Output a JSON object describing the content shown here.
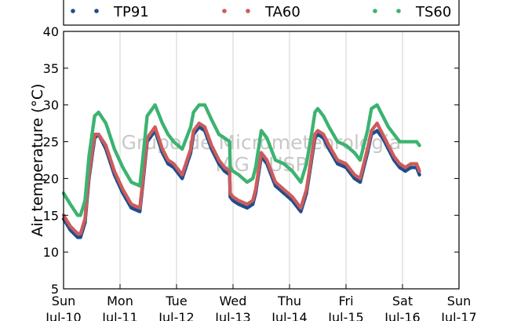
{
  "chart_data": {
    "type": "scatter",
    "title": "",
    "xlabel": "",
    "ylabel": "Air temperature (°C)",
    "ylim": [
      5,
      40
    ],
    "yticks": [
      "5",
      "10",
      "15",
      "20",
      "25",
      "30",
      "35",
      "40"
    ],
    "xlim": [
      0,
      7
    ],
    "xtick_days": [
      "Sun",
      "Mon",
      "Tue",
      "Wed",
      "Thu",
      "Fri",
      "Sat",
      "Sun"
    ],
    "xtick_dates": [
      "Jul-10",
      "Jul-11",
      "Jul-12",
      "Jul-13",
      "Jul-14",
      "Jul-15",
      "Jul-16",
      "Jul-17"
    ],
    "grid": "vertical",
    "legend_position": "top",
    "watermark": [
      "Grupo de Micrometeorologia",
      "IAG / USP"
    ],
    "series": [
      {
        "name": "TP91",
        "color": "#1f4e8c",
        "x": [
          0.0,
          0.12,
          0.25,
          0.3,
          0.38,
          0.45,
          0.55,
          0.62,
          0.75,
          0.9,
          1.05,
          1.2,
          1.35,
          1.4,
          1.48,
          1.62,
          1.75,
          1.85,
          1.95,
          2.1,
          2.25,
          2.3,
          2.4,
          2.5,
          2.62,
          2.75,
          2.85,
          2.94,
          2.95,
          3.0,
          3.1,
          3.25,
          3.35,
          3.4,
          3.5,
          3.6,
          3.75,
          3.9,
          4.05,
          4.2,
          4.3,
          4.4,
          4.45,
          4.5,
          4.6,
          4.7,
          4.85,
          5.0,
          5.15,
          5.25,
          5.38,
          5.45,
          5.55,
          5.65,
          5.75,
          5.85,
          5.95,
          6.05,
          6.15,
          6.25,
          6.3
        ],
        "values": [
          14.5,
          13.0,
          12.0,
          12.0,
          14.0,
          20.0,
          25.5,
          26.0,
          24.0,
          20.5,
          18.0,
          16.0,
          15.5,
          19.0,
          25.0,
          26.5,
          23.5,
          22.0,
          21.5,
          20.0,
          23.5,
          26.0,
          27.0,
          26.5,
          24.0,
          22.0,
          21.0,
          20.5,
          17.5,
          17.0,
          16.5,
          16.0,
          16.5,
          18.0,
          23.0,
          22.0,
          19.0,
          18.0,
          17.0,
          15.5,
          18.0,
          23.0,
          25.5,
          26.0,
          25.5,
          24.0,
          22.0,
          21.5,
          20.0,
          19.5,
          23.5,
          26.0,
          26.5,
          25.5,
          24.0,
          22.5,
          21.5,
          21.0,
          21.5,
          21.5,
          20.5
        ]
      },
      {
        "name": "TA60",
        "color": "#cd5c5c",
        "x": [
          0.0,
          0.12,
          0.25,
          0.3,
          0.38,
          0.45,
          0.55,
          0.62,
          0.75,
          0.9,
          1.05,
          1.2,
          1.35,
          1.4,
          1.48,
          1.62,
          1.75,
          1.85,
          1.95,
          2.1,
          2.25,
          2.3,
          2.4,
          2.5,
          2.62,
          2.75,
          2.85,
          2.94,
          2.95,
          3.0,
          3.1,
          3.25,
          3.35,
          3.4,
          3.5,
          3.6,
          3.75,
          3.9,
          4.05,
          4.2,
          4.3,
          4.4,
          4.45,
          4.5,
          4.6,
          4.7,
          4.85,
          5.0,
          5.15,
          5.25,
          5.38,
          5.45,
          5.55,
          5.65,
          5.75,
          5.85,
          5.95,
          6.05,
          6.15,
          6.25,
          6.3
        ],
        "values": [
          15.0,
          13.5,
          12.5,
          12.5,
          14.5,
          20.5,
          26.0,
          26.0,
          24.5,
          21.0,
          18.5,
          16.5,
          16.0,
          19.5,
          25.5,
          27.0,
          24.0,
          22.5,
          22.0,
          20.5,
          24.0,
          26.5,
          27.5,
          27.0,
          24.5,
          22.5,
          21.5,
          21.0,
          18.0,
          17.5,
          17.0,
          16.5,
          17.0,
          18.5,
          23.5,
          22.5,
          19.5,
          18.5,
          17.5,
          16.0,
          18.5,
          23.5,
          26.0,
          26.5,
          26.0,
          24.5,
          22.5,
          22.0,
          20.5,
          20.0,
          24.0,
          26.5,
          27.5,
          26.0,
          24.5,
          23.0,
          22.0,
          21.5,
          22.0,
          22.0,
          21.0
        ]
      },
      {
        "name": "TS60",
        "color": "#3cb371",
        "x": [
          0.0,
          0.12,
          0.25,
          0.3,
          0.38,
          0.45,
          0.55,
          0.62,
          0.75,
          0.9,
          1.05,
          1.2,
          1.35,
          1.4,
          1.48,
          1.62,
          1.75,
          1.85,
          1.95,
          2.1,
          2.25,
          2.3,
          2.4,
          2.5,
          2.62,
          2.75,
          2.85,
          2.94,
          2.95,
          3.0,
          3.1,
          3.25,
          3.35,
          3.4,
          3.5,
          3.6,
          3.75,
          3.9,
          4.05,
          4.2,
          4.3,
          4.4,
          4.45,
          4.5,
          4.6,
          4.7,
          4.85,
          5.0,
          5.15,
          5.25,
          5.38,
          5.45,
          5.55,
          5.65,
          5.75,
          5.85,
          5.95,
          6.05,
          6.15,
          6.25,
          6.3
        ],
        "values": [
          18.0,
          16.5,
          15.0,
          15.0,
          17.0,
          23.0,
          28.5,
          29.0,
          27.5,
          24.0,
          21.5,
          19.5,
          19.0,
          22.5,
          28.5,
          30.0,
          27.5,
          26.0,
          25.0,
          24.0,
          27.0,
          29.0,
          30.0,
          30.0,
          28.0,
          26.0,
          25.5,
          25.0,
          21.5,
          21.0,
          20.5,
          19.5,
          20.0,
          21.5,
          26.5,
          25.5,
          22.5,
          22.0,
          21.0,
          19.5,
          22.0,
          26.5,
          29.0,
          29.5,
          28.5,
          27.0,
          25.0,
          24.5,
          23.5,
          22.5,
          26.5,
          29.5,
          30.0,
          28.5,
          27.0,
          26.0,
          25.0,
          25.0,
          25.0,
          25.0,
          24.5
        ]
      }
    ]
  }
}
